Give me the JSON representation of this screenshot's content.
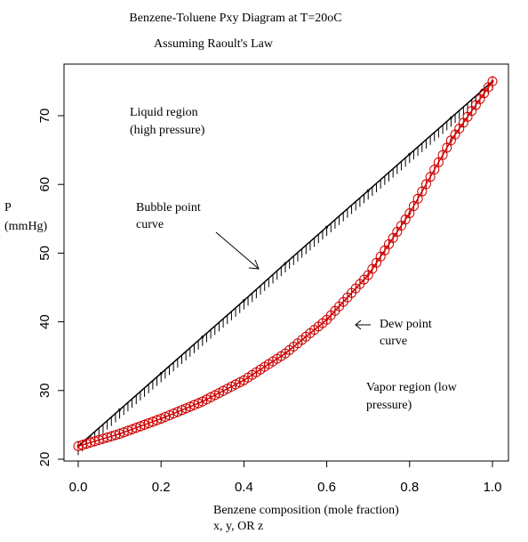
{
  "chart_data": {
    "type": "line",
    "title": "Benzene-Toluene Pxy Diagram at T=20oC",
    "subtitle": "Assuming Raoult's Law",
    "xlabel_line1": "Benzene composition (mole fraction)",
    "xlabel_line2": "x, y, OR z",
    "ylabel_line1": "P",
    "ylabel_line2": "(mmHg)",
    "xlim": [
      0.0,
      1.0
    ],
    "ylim": [
      20,
      76
    ],
    "x_ticks": [
      "0.0",
      "0.2",
      "0.4",
      "0.6",
      "0.8",
      "1.0"
    ],
    "y_ticks": [
      "20",
      "30",
      "40",
      "50",
      "60",
      "70"
    ],
    "grid": false,
    "pure_component_pressures": {
      "benzene": 75.0,
      "toluene": 21.9
    },
    "series": [
      {
        "color": "#000000",
        "marker": "vertical-hash",
        "x": [
          0.0,
          0.1,
          0.2,
          0.3,
          0.4,
          0.5,
          0.6,
          0.7,
          0.8,
          0.9,
          1.0
        ],
        "y": [
          21.9,
          27.2,
          32.5,
          37.8,
          43.1,
          48.5,
          53.8,
          59.1,
          64.4,
          69.7,
          75.0
        ]
      },
      {
        "color": "#cc0000",
        "marker": "open-circle-cross",
        "x": [
          0.0,
          0.1,
          0.2,
          0.3,
          0.4,
          0.5,
          0.6,
          0.7,
          0.8,
          0.9,
          1.0
        ],
        "y": [
          21.9,
          23.7,
          25.9,
          28.4,
          31.5,
          35.4,
          40.3,
          46.8,
          55.8,
          66.4,
          75.0
        ]
      }
    ],
    "annotations": [
      {
        "id": "liquid",
        "line1": "Liquid region",
        "line2": "(high pressure)"
      },
      {
        "id": "bubble",
        "line1": "Bubble point",
        "line2": "curve"
      },
      {
        "id": "dew",
        "line1": "Dew point",
        "line2": "curve"
      },
      {
        "id": "vapor",
        "line1": "Vapor region (low",
        "line2": "pressure)"
      }
    ]
  }
}
